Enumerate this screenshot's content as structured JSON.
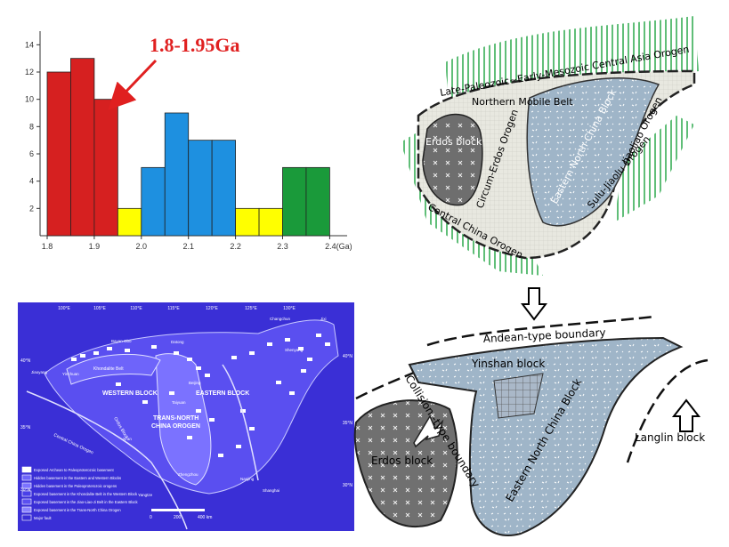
{
  "chart_data": {
    "type": "bar",
    "annotation": "1.8-1.95Ga",
    "x_ticks": [
      "1.8",
      "1.9",
      "2.0",
      "2.1",
      "2.2",
      "2.3",
      "2.4(Ga)"
    ],
    "y_ticks": [
      "2",
      "4",
      "6",
      "8",
      "10",
      "12",
      "14"
    ],
    "ylim": [
      0,
      15
    ],
    "xlim": [
      1.8,
      2.4
    ],
    "bin_width": 0.05,
    "bars": [
      {
        "x": 1.8,
        "value": 12,
        "color": "#d62020"
      },
      {
        "x": 1.85,
        "value": 13,
        "color": "#d62020"
      },
      {
        "x": 1.9,
        "value": 10,
        "color": "#d62020"
      },
      {
        "x": 1.95,
        "value": 2,
        "color": "#ffff00"
      },
      {
        "x": 2.0,
        "value": 5,
        "color": "#1e90e0"
      },
      {
        "x": 2.05,
        "value": 9,
        "color": "#1e90e0"
      },
      {
        "x": 2.1,
        "value": 7,
        "color": "#1e90e0"
      },
      {
        "x": 2.15,
        "value": 7,
        "color": "#1e90e0"
      },
      {
        "x": 2.2,
        "value": 2,
        "color": "#ffff00"
      },
      {
        "x": 2.25,
        "value": 2,
        "color": "#ffff00"
      },
      {
        "x": 2.3,
        "value": 5,
        "color": "#1a9a3a"
      },
      {
        "x": 2.35,
        "value": 5,
        "color": "#1a9a3a"
      }
    ]
  },
  "top_map": {
    "labels": {
      "central_asia": "Late-Paleozoic~Early-Mesozoic Central Asia Orogen",
      "northern_mobile_belt": "Northern Mobile Belt",
      "erdos": "Erdos block",
      "circum_erdos": "Circum-Erdos Orogen",
      "eastern_nc": "Eastern North China Block",
      "jiaoliao": "Jiaoliao Orogen",
      "sulu": "Sulu-Jiaolu Orogen",
      "central_china": "Central China Orogen"
    }
  },
  "bottom_map": {
    "labels": {
      "andean": "Andean-type boundary",
      "yinshan": "Yinshan block",
      "collision": "Collision -type boundary",
      "erdos": "Erdos block",
      "eastern_nc": "Eastern North China Block",
      "langlin": "Langlin block"
    }
  },
  "blue_map": {
    "lon_labels": [
      "100°E",
      "105°E",
      "110°E",
      "115°E",
      "120°E",
      "125°E",
      "130°E"
    ],
    "lat_labels": [
      "40°N",
      "35°N",
      "30°N",
      "40°N",
      "35°N",
      "30°N"
    ],
    "blocks": {
      "western": "WESTERN BLOCK",
      "eastern": "EASTERN BLOCK",
      "tnco_1": "TRANS-NORTH",
      "tnco_2": "CHINA OROGEN",
      "khondalite": "Khondalite Belt",
      "ordos": "Ordos Block",
      "central_china": "Central China Orogen"
    },
    "cities": [
      "Changchun",
      "Beijing",
      "Datong",
      "Taiyuan",
      "Bayan Obo",
      "Zhengzhou",
      "Shanghai",
      "Jixi",
      "Shenyang",
      "Yinchuan",
      "Jiaoyang",
      "Xi'an",
      "Nanjing",
      "Yangtze"
    ],
    "legend": [
      "Exposed Archean to Paleoproterozoic basement",
      "Hidden basement in the Eastern and Western Blocks",
      "Hidden basement in the Paleoproterozoic orogens",
      "Exposed basement in the Khondalite Belt in the Western Block",
      "Exposed basement in the Jiao-Liao-Ji Belt in the Eastern Block",
      "Exposed basement in the Trans-North China Orogen",
      "Major fault"
    ],
    "scale": [
      "0",
      "200",
      "400 km"
    ]
  },
  "colors": {
    "blue_map_bg": "#3a2fd6",
    "blue_map_land": "#5a4ff0",
    "block_fill": "#9fb5c8",
    "erdos_fill": "#707070",
    "orogen_green": "#2aa84a"
  }
}
